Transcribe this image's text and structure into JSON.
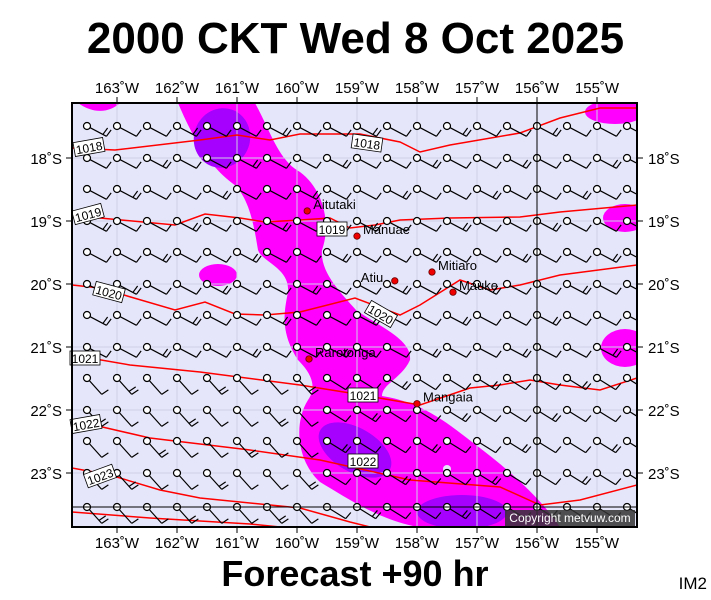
{
  "header": {
    "title": "2000 CKT Wed 8 Oct 2025"
  },
  "footer": {
    "forecast": "Forecast +90 hr",
    "image_id": "IM2",
    "copyright": "Copyright metvuw.com"
  },
  "map": {
    "lon_labels": [
      "163˚W",
      "162˚W",
      "161˚W",
      "160˚W",
      "159˚W",
      "158˚W",
      "157˚W",
      "156˚W",
      "155˚W"
    ],
    "lat_labels": [
      "18˚S",
      "19˚S",
      "20˚S",
      "21˚S",
      "22˚S",
      "23˚S"
    ],
    "isobar_labels": [
      "1018",
      "1018",
      "1019",
      "1019",
      "1020",
      "1020",
      "1021",
      "1021",
      "1022",
      "1022",
      "1023"
    ],
    "places": [
      {
        "name": "Aitutaki",
        "lon": -159.83,
        "lat": -18.84
      },
      {
        "name": "Manuae",
        "lon": -159.0,
        "lat": -19.24
      },
      {
        "name": "Atiu",
        "lon": -158.37,
        "lat": -19.95
      },
      {
        "name": "Mitiaro",
        "lon": -157.75,
        "lat": -19.81
      },
      {
        "name": "Mauke",
        "lon": -157.4,
        "lat": -20.13
      },
      {
        "name": "Rarotonga",
        "lon": -159.8,
        "lat": -21.19
      },
      {
        "name": "Mangaia",
        "lon": -158.0,
        "lat": -21.9
      }
    ],
    "colors": {
      "background": "#e6e6fa",
      "rain_light": "#ff00ff",
      "rain_heavy": "#a600ff",
      "isobar": "#ff0000"
    }
  }
}
